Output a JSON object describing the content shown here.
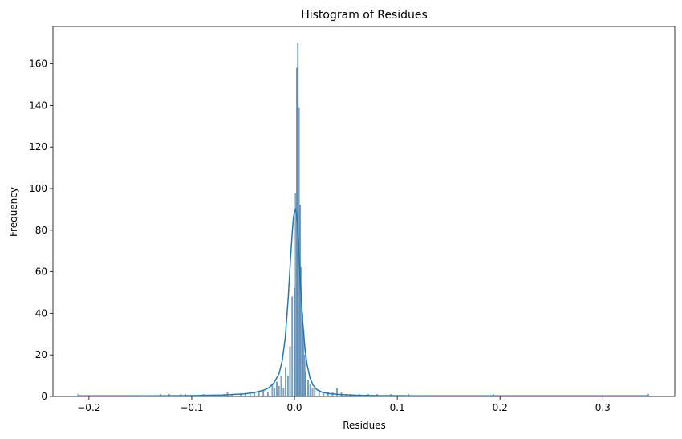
{
  "chart_data": {
    "type": "bar",
    "subtype": "histogram",
    "title": "Histogram of Residues",
    "xlabel": "Residues",
    "ylabel": "Frequency",
    "xlim": [
      -0.235,
      0.37
    ],
    "ylim": [
      0,
      178
    ],
    "xticks": [
      -0.2,
      -0.1,
      0.0,
      0.1,
      0.2,
      0.3
    ],
    "xtick_labels": [
      "−0.2",
      "−0.1",
      "0.0",
      "0.1",
      "0.2",
      "0.3"
    ],
    "yticks": [
      0,
      20,
      40,
      60,
      80,
      100,
      120,
      140,
      160
    ],
    "ytick_labels": [
      "0",
      "20",
      "40",
      "60",
      "80",
      "100",
      "120",
      "140",
      "160"
    ],
    "grid": false,
    "bar_color": "#5b8db8",
    "line_color": "#1f77b4",
    "bins": [
      {
        "x": -0.2104,
        "count": 1
      },
      {
        "x": -0.1302,
        "count": 1
      },
      {
        "x": -0.1218,
        "count": 1
      },
      {
        "x": -0.1106,
        "count": 1
      },
      {
        "x": -0.1062,
        "count": 1
      },
      {
        "x": -0.0886,
        "count": 1
      },
      {
        "x": -0.0682,
        "count": 1
      },
      {
        "x": -0.0652,
        "count": 2
      },
      {
        "x": -0.0608,
        "count": 1
      },
      {
        "x": -0.0522,
        "count": 1
      },
      {
        "x": -0.0478,
        "count": 1
      },
      {
        "x": -0.0432,
        "count": 1
      },
      {
        "x": -0.0389,
        "count": 2
      },
      {
        "x": -0.0346,
        "count": 2
      },
      {
        "x": -0.0303,
        "count": 3
      },
      {
        "x": -0.0259,
        "count": 2
      },
      {
        "x": -0.0216,
        "count": 6
      },
      {
        "x": -0.0194,
        "count": 4
      },
      {
        "x": -0.0172,
        "count": 7
      },
      {
        "x": -0.0151,
        "count": 5
      },
      {
        "x": -0.0129,
        "count": 10
      },
      {
        "x": -0.0107,
        "count": 4
      },
      {
        "x": -0.0086,
        "count": 14
      },
      {
        "x": -0.0064,
        "count": 10
      },
      {
        "x": -0.0043,
        "count": 24
      },
      {
        "x": -0.0022,
        "count": 48
      },
      {
        "x": 0.0,
        "count": 52
      },
      {
        "x": 0.0011,
        "count": 98
      },
      {
        "x": 0.0022,
        "count": 158
      },
      {
        "x": 0.0033,
        "count": 170
      },
      {
        "x": 0.0044,
        "count": 139
      },
      {
        "x": 0.0055,
        "count": 92
      },
      {
        "x": 0.0066,
        "count": 62
      },
      {
        "x": 0.0077,
        "count": 40
      },
      {
        "x": 0.0088,
        "count": 32
      },
      {
        "x": 0.0099,
        "count": 20
      },
      {
        "x": 0.011,
        "count": 12
      },
      {
        "x": 0.0132,
        "count": 8
      },
      {
        "x": 0.0153,
        "count": 6
      },
      {
        "x": 0.0175,
        "count": 4
      },
      {
        "x": 0.0197,
        "count": 4
      },
      {
        "x": 0.024,
        "count": 3
      },
      {
        "x": 0.0283,
        "count": 2
      },
      {
        "x": 0.0327,
        "count": 2
      },
      {
        "x": 0.0371,
        "count": 2
      },
      {
        "x": 0.0414,
        "count": 4
      },
      {
        "x": 0.0457,
        "count": 2
      },
      {
        "x": 0.0501,
        "count": 1
      },
      {
        "x": 0.0544,
        "count": 1
      },
      {
        "x": 0.0631,
        "count": 1
      },
      {
        "x": 0.0718,
        "count": 1
      },
      {
        "x": 0.0804,
        "count": 1
      },
      {
        "x": 0.0936,
        "count": 1
      },
      {
        "x": 0.111,
        "count": 1
      },
      {
        "x": 0.1935,
        "count": 1
      },
      {
        "x": 0.3442,
        "count": 1
      }
    ],
    "bin_width": 0.0011,
    "kde": {
      "x": [
        -0.21,
        -0.15,
        -0.1,
        -0.07,
        -0.05,
        -0.04,
        -0.03,
        -0.025,
        -0.02,
        -0.015,
        -0.012,
        -0.009,
        -0.006,
        -0.004,
        -0.002,
        -0.001,
        0.0,
        0.001,
        0.002,
        0.003,
        0.004,
        0.005,
        0.006,
        0.008,
        0.01,
        0.012,
        0.015,
        0.018,
        0.022,
        0.027,
        0.035,
        0.045,
        0.06,
        0.08,
        0.12,
        0.2,
        0.344
      ],
      "y": [
        0.3,
        0.3,
        0.4,
        0.7,
        1.2,
        1.8,
        3.0,
        4.2,
        6.5,
        11,
        17,
        28,
        48,
        65,
        80,
        86,
        89,
        90,
        88,
        83,
        74,
        63,
        52,
        36,
        24,
        16,
        9,
        5.5,
        3.2,
        2.0,
        1.3,
        0.9,
        0.6,
        0.4,
        0.3,
        0.3,
        0.3
      ]
    }
  }
}
